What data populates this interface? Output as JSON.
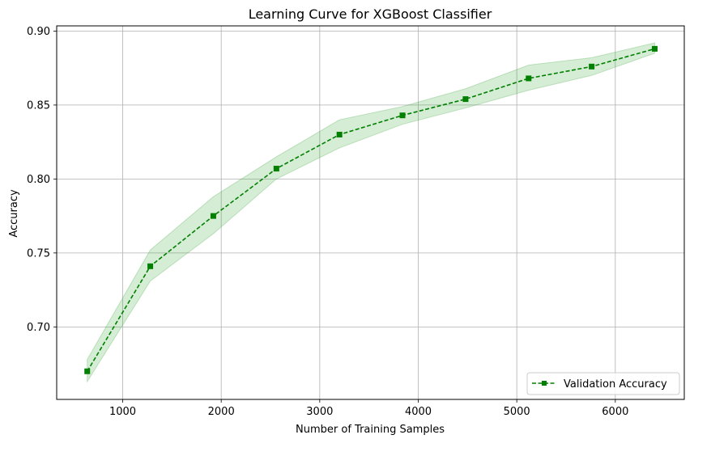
{
  "chart_data": {
    "type": "line",
    "title": "Learning Curve for XGBoost Classifier",
    "xlabel": "Number of Training Samples",
    "ylabel": "Accuracy",
    "xlim": [
      330,
      6700
    ],
    "ylim": [
      0.651,
      0.9035
    ],
    "xticks": [
      1000,
      2000,
      3000,
      4000,
      5000,
      6000
    ],
    "yticks": [
      0.7,
      0.75,
      0.8,
      0.85,
      0.9
    ],
    "grid": true,
    "legend_position": "lower-right",
    "series": [
      {
        "name": "Validation Accuracy",
        "color": "#008000",
        "line_style": "dashed",
        "marker": "square",
        "band_color": "#2ca02c",
        "x": [
          640,
          1280,
          1920,
          2560,
          3200,
          3840,
          4480,
          5120,
          5760,
          6400
        ],
        "y": [
          0.67,
          0.741,
          0.775,
          0.807,
          0.83,
          0.843,
          0.854,
          0.868,
          0.876,
          0.888
        ],
        "y_lower": [
          0.663,
          0.731,
          0.763,
          0.8,
          0.821,
          0.837,
          0.848,
          0.86,
          0.87,
          0.885
        ],
        "y_upper": [
          0.678,
          0.752,
          0.788,
          0.815,
          0.84,
          0.849,
          0.861,
          0.877,
          0.882,
          0.892
        ]
      }
    ]
  }
}
